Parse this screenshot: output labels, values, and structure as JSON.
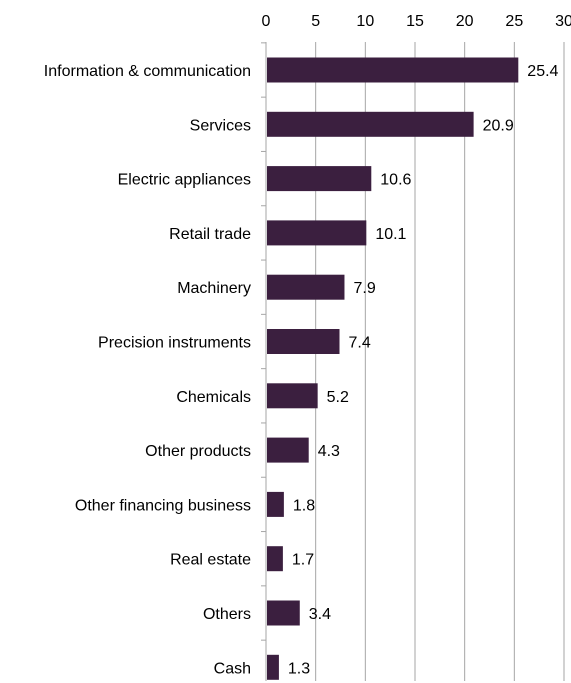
{
  "chart_data": {
    "type": "bar",
    "orientation": "horizontal",
    "categories": [
      "Information & communication",
      "Services",
      "Electric appliances",
      "Retail trade",
      "Machinery",
      "Precision instruments",
      "Chemicals",
      "Other products",
      "Other financing business",
      "Real estate",
      "Others",
      "Cash"
    ],
    "values": [
      25.4,
      20.9,
      10.6,
      10.1,
      7.9,
      7.4,
      5.2,
      4.3,
      1.8,
      1.7,
      3.4,
      1.3
    ],
    "value_labels": [
      "25.4",
      "20.9",
      "10.6",
      "10.1",
      "7.9",
      "7.4",
      "5.2",
      "4.3",
      "1.8",
      "1.7",
      "3.4",
      "1.3"
    ],
    "xlim": [
      0,
      30
    ],
    "x_ticks": [
      0,
      5,
      10,
      15,
      20,
      25,
      30
    ],
    "x_tick_labels": [
      "0",
      "5",
      "10",
      "15",
      "20",
      "25",
      "30"
    ],
    "x_axis_position": "top",
    "grid": "vertical",
    "legend": "none",
    "bar_color": "#3b1f3f",
    "grid_color": "#a6a6a6"
  }
}
